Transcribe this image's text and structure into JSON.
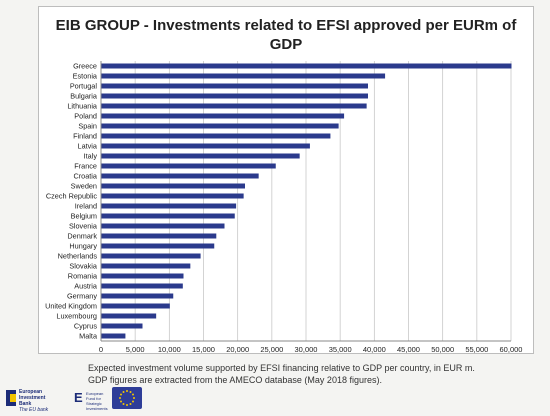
{
  "chart_data": {
    "type": "bar",
    "orientation": "horizontal",
    "title": "EIB GROUP - Investments related to EFSI approved per EURm of GDP",
    "categories": [
      "Greece",
      "Estonia",
      "Portugal",
      "Bulgaria",
      "Lithuania",
      "Poland",
      "Spain",
      "Finland",
      "Latvia",
      "Italy",
      "France",
      "Croatia",
      "Sweden",
      "Czech Republic",
      "Ireland",
      "Belgium",
      "Slovenia",
      "Denmark",
      "Hungary",
      "Netherlands",
      "Slovakia",
      "Romania",
      "Austria",
      "Germany",
      "United Kingdom",
      "Luxembourg",
      "Cyprus",
      "Malta"
    ],
    "values": [
      60000,
      41500,
      39000,
      39000,
      38800,
      35500,
      34700,
      33500,
      30500,
      29000,
      25500,
      23000,
      21000,
      20800,
      19700,
      19500,
      18000,
      16800,
      16500,
      14500,
      13000,
      12000,
      11900,
      10500,
      10000,
      8000,
      6000,
      3500
    ],
    "xlim": [
      0,
      60000
    ],
    "xticks": [
      "0",
      "5,000",
      "10,000",
      "15,000",
      "20,000",
      "25,000",
      "30,000",
      "35,000",
      "40,000",
      "45,000",
      "50,000",
      "55,000",
      "60,000"
    ],
    "xtick_values": [
      0,
      5000,
      10000,
      15000,
      20000,
      25000,
      30000,
      35000,
      40000,
      45000,
      50000,
      55000,
      60000
    ],
    "grid": "vertical",
    "bar_color": "#2b3a8c"
  },
  "caption": {
    "line1": "Expected investment volume supported by EFSI financing relative to GDP per country, in EUR m.",
    "line2": "GDP figures are extracted from the AMECO database (May 2018 figures)."
  },
  "footer": {
    "eib_logo_text": [
      "European",
      "Investment",
      "Bank"
    ],
    "eib_tagline": "The EU bank",
    "efsi_logo_text": [
      "European",
      "Fund for",
      "Strategic",
      "Investments"
    ],
    "eu_flag_icon": "eu-flag-icon"
  }
}
